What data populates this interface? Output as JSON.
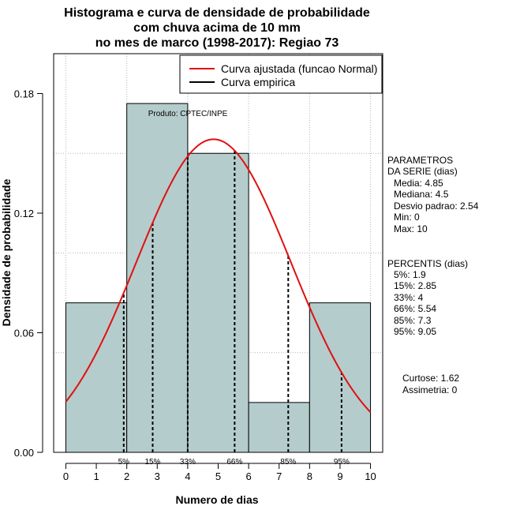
{
  "colors": {
    "bar_fill": "#b5cccc",
    "curve": "#e01010",
    "empirical": "#000000",
    "grid": "#b4b4b4"
  },
  "chart_data": {
    "type": "bar",
    "title": [
      "Histograma e curva de densidade de probabilidade",
      "com chuva acima de 10 mm",
      "no mes de marco (1998-2017): Regiao 73"
    ],
    "xlabel": "Numero de dias",
    "ylabel": "Densidade de probabilidade",
    "xlim": [
      -0.4,
      10.4
    ],
    "ylim": [
      0,
      0.2
    ],
    "xticks": [
      "0",
      "1",
      "2",
      "3",
      "4",
      "5",
      "6",
      "7",
      "8",
      "9",
      "10"
    ],
    "yticks": [
      "0.00",
      "0.06",
      "0.12",
      "0.18"
    ],
    "grid": true,
    "bins": [
      {
        "from": 0,
        "to": 2,
        "density": 0.075
      },
      {
        "from": 2,
        "to": 4,
        "density": 0.175
      },
      {
        "from": 4,
        "to": 6,
        "density": 0.15
      },
      {
        "from": 6,
        "to": 8,
        "density": 0.025
      },
      {
        "from": 8,
        "to": 10,
        "density": 0.075
      }
    ],
    "normal_fit": {
      "mean": 4.85,
      "sd": 2.54
    },
    "percentile_lines": [
      {
        "label": "5%",
        "x": 1.9
      },
      {
        "label": "15%",
        "x": 2.85
      },
      {
        "label": "33%",
        "x": 4
      },
      {
        "label": "66%",
        "x": 5.54
      },
      {
        "label": "85%",
        "x": 7.3
      },
      {
        "label": "95%",
        "x": 9.05
      }
    ],
    "legend": {
      "position": "top-right",
      "items": [
        {
          "label": "Curva ajustada (funcao Normal)",
          "color": "#e01010"
        },
        {
          "label": "Curva empirica",
          "color": "#000000"
        }
      ]
    },
    "source_note": "Produto: CPTEC/INPE",
    "side_params": [
      "PARAMETROS",
      "DA SERIE (dias)",
      "Media: 4.85",
      "Mediana: 4.5",
      "Desvio padrao: 2.54",
      "Min: 0",
      "Max: 10"
    ],
    "side_percentis": [
      "PERCENTIS (dias)",
      "5%: 1.9",
      "15%: 2.85",
      "33%: 4",
      "66%: 5.54",
      "85%: 7.3",
      "95%: 9.05"
    ],
    "side_stats": [
      "Curtose: 1.62",
      "Assimetria: 0"
    ]
  }
}
